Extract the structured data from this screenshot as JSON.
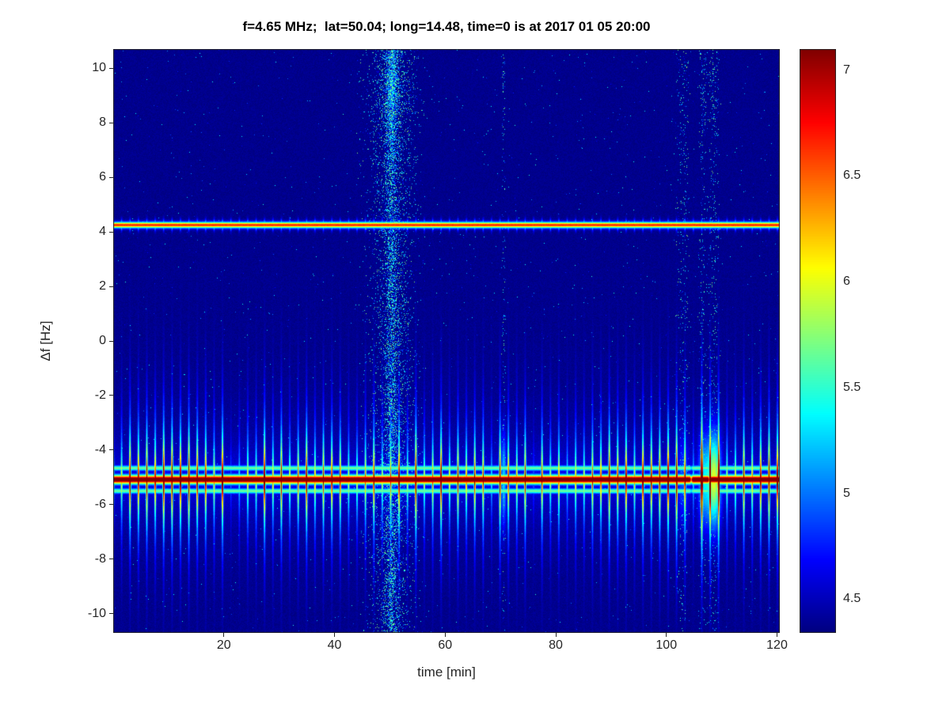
{
  "chart": {
    "title": "f=4.65 MHz;  lat=50.04; long=14.48, time=0 is at 2017 01 05 20:00",
    "xlabel": "time [min]",
    "ylabel": "Δf [Hz]"
  },
  "chart_data": {
    "type": "heatmap",
    "title": "f=4.65 MHz;  lat=50.04; long=14.48, time=0 is at 2017 01 05 20:00",
    "xlabel": "time [min]",
    "ylabel": "Δf [Hz]",
    "colormap": "jet",
    "xlim": [
      0,
      120.5
    ],
    "ylim": [
      -10.7,
      10.7
    ],
    "clim": [
      4.34,
      7.1
    ],
    "x_ticks": [
      20,
      40,
      60,
      80,
      100,
      120
    ],
    "x_tick_labels": [
      "20",
      "40",
      "60",
      "80",
      "100",
      "120"
    ],
    "y_ticks": [
      -10,
      -8,
      -6,
      -4,
      -2,
      0,
      2,
      4,
      6,
      8,
      10
    ],
    "y_tick_labels": [
      "-10",
      "-8",
      "-6",
      "-4",
      "-2",
      "0",
      "2",
      "4",
      "6",
      "8",
      "10"
    ],
    "colorbar_ticks": [
      4.5,
      5,
      5.5,
      6,
      6.5,
      7
    ],
    "colorbar_tick_labels": [
      "4.5",
      "5",
      "5.5",
      "6",
      "6.5",
      "7"
    ],
    "background_value": 4.4,
    "features": {
      "carrier_line": {
        "freq_hz": 4.25,
        "peak_value": 6.8,
        "description": "thin horizontal red-orange spectral line with periodic tick marks"
      },
      "doppler_band": {
        "freq_hz": -5.08,
        "peak_value": 7.1,
        "comb_period_min": 1.52,
        "comb_extent_hz": 3.2,
        "satellite_offset_hz": 0.42,
        "core_dips": [
          {
            "time_min": 104.5,
            "strength": 0.3,
            "sigma_min": 0.12
          },
          {
            "time_min": 107.8,
            "strength": 0.3,
            "sigma_min": 0.12
          }
        ],
        "description": "strong dark-red spectral band with periodic vertical comb spikes from -2 to -8 Hz"
      },
      "scatter_event": {
        "time_min": 50.4,
        "sigma_min": 2.3,
        "description": "vertical column of scattered blue speckles spanning all frequencies near t=50 min"
      },
      "disturbances": [
        {
          "time_min": 70.6,
          "strength": 0.5,
          "sigma_min": 0.35,
          "blob": 0.9
        },
        {
          "time_min": 103.0,
          "strength": 0.5,
          "sigma_min": 1.0,
          "blob": 0.5
        },
        {
          "time_min": 106.6,
          "strength": 0.55,
          "sigma_min": 0.7,
          "blob": 0.8
        },
        {
          "time_min": 108.6,
          "strength": 0.6,
          "sigma_min": 0.9,
          "blob": 1.6
        }
      ]
    }
  }
}
